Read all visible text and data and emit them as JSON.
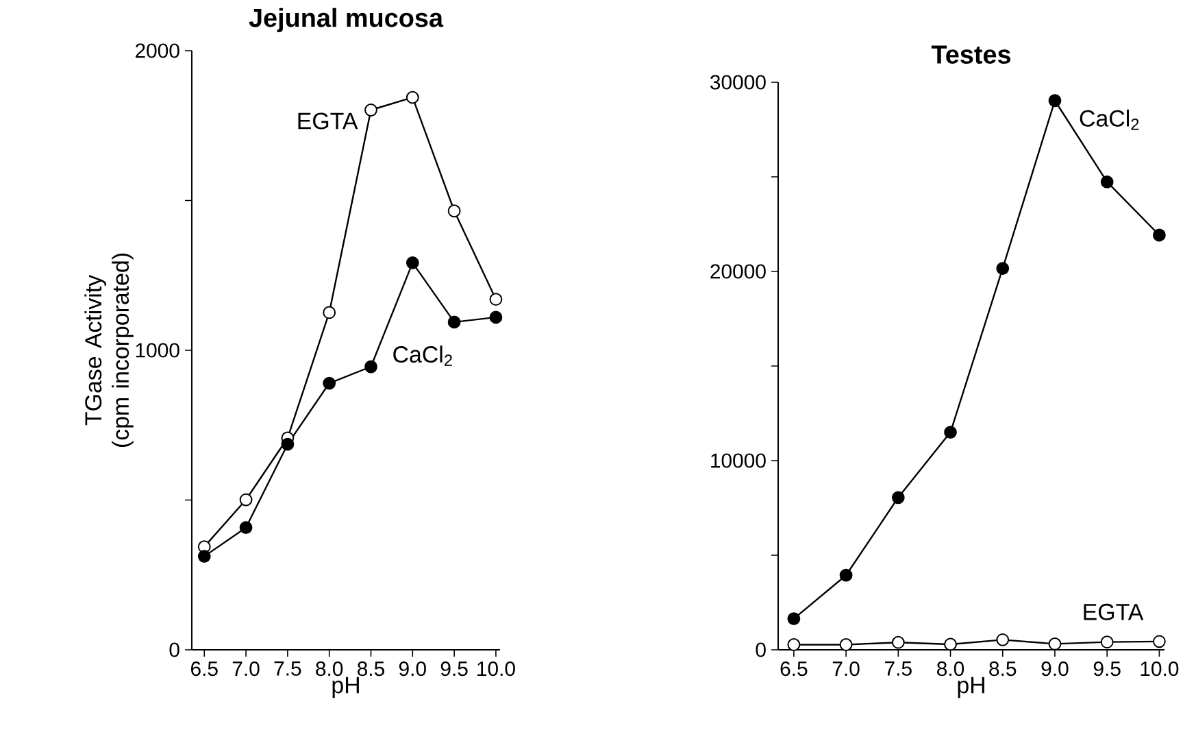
{
  "chart_data": [
    {
      "type": "line",
      "title": "Jejunal mucosa",
      "xlabel": "pH",
      "ylabel": "TGase Activity (cpm incorporated)",
      "x": [
        6.5,
        7.0,
        7.5,
        8.0,
        8.5,
        9.0,
        9.5,
        10.0
      ],
      "xlim": [
        6.35,
        10.05
      ],
      "xticks": [
        {
          "value": 6.5,
          "label": "6.5"
        },
        {
          "value": 7.0,
          "label": "7.0"
        },
        {
          "value": 7.5,
          "label": "7.5"
        },
        {
          "value": 8.0,
          "label": "8.0"
        },
        {
          "value": 8.5,
          "label": "8.5"
        },
        {
          "value": 9.0,
          "label": "9.0"
        },
        {
          "value": 9.5,
          "label": "9.5"
        },
        {
          "value": 10.0,
          "label": "10.0"
        }
      ],
      "ylim": [
        0,
        2000
      ],
      "yticks": [
        0,
        {
          "value": 500,
          "label": null
        },
        1000,
        {
          "value": 1500,
          "label": null
        },
        2000
      ],
      "marker": "circle",
      "line_style": "solid",
      "grid": false,
      "legend": false,
      "series": [
        {
          "name": "EGTA",
          "color": "#ffffff",
          "values": [
            344,
            501,
            707,
            1126,
            1802,
            1844,
            1465,
            1170
          ]
        },
        {
          "name": "CaCl$_{2}$",
          "color": "#000000",
          "values": [
            312,
            408,
            686,
            890,
            945,
            1292,
            1094,
            1110
          ]
        }
      ]
    },
    {
      "type": "line",
      "title": "Testes",
      "xlabel": "pH",
      "x": [
        6.5,
        7.0,
        7.5,
        8.0,
        8.5,
        9.0,
        9.5,
        10.0
      ],
      "xlim": [
        6.35,
        10.05
      ],
      "xticks": [
        {
          "value": 6.5,
          "label": "6.5"
        },
        {
          "value": 7.0,
          "label": "7.0"
        },
        {
          "value": 7.5,
          "label": "7.5"
        },
        {
          "value": 8.0,
          "label": "8.0"
        },
        {
          "value": 8.5,
          "label": "8.5"
        },
        {
          "value": 9.0,
          "label": "9.0"
        },
        {
          "value": 9.5,
          "label": "9.5"
        },
        {
          "value": 10.0,
          "label": "10.0"
        }
      ],
      "ylim": [
        0,
        30000
      ],
      "yticks": [
        0,
        {
          "value": 5000,
          "label": null
        },
        10000,
        {
          "value": 15000,
          "label": null
        },
        20000,
        {
          "value": 25000,
          "label": null
        },
        30000
      ],
      "marker": "circle",
      "line_style": "solid",
      "grid": false,
      "legend": false,
      "series": [
        {
          "name": "CaCl$_{2}$",
          "color": "#000000",
          "values": [
            1640,
            3940,
            8050,
            11500,
            20160,
            29030,
            24730,
            21920
          ]
        },
        {
          "name": "EGTA",
          "color": "#ffffff",
          "values": [
            270,
            270,
            390,
            290,
            530,
            310,
            410,
            440
          ]
        }
      ]
    }
  ]
}
